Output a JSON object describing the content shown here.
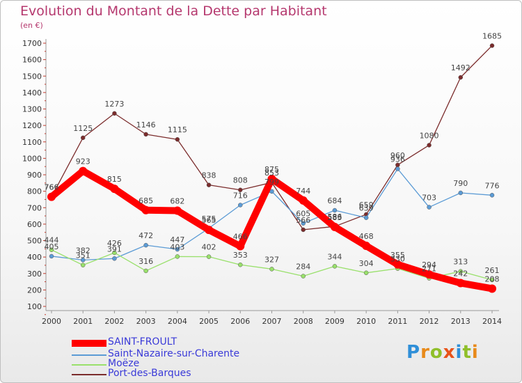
{
  "title": "Evolution du Montant de la Dette par Habitant",
  "unit": "(en €)",
  "logo": "Proxiti",
  "chart_data": {
    "type": "line",
    "x": [
      "2000",
      "2001",
      "2002",
      "2003",
      "2004",
      "2005",
      "2006",
      "2007",
      "2008",
      "2009",
      "2010",
      "2011",
      "2012",
      "2013",
      "2014"
    ],
    "ylim": [
      100,
      1700
    ],
    "yticks": [
      100,
      200,
      300,
      400,
      500,
      600,
      700,
      800,
      900,
      1000,
      1100,
      1200,
      1300,
      1400,
      1500,
      1600,
      1700
    ],
    "grid": false,
    "legend_position": "bottom-left",
    "series": [
      {
        "name": "SAINT-FROULT",
        "color": "#ff0000",
        "values": [
          766,
          923,
          815,
          685,
          682,
          565,
          466,
          875,
          744,
          583,
          468,
          355,
          294,
          242,
          208
        ]
      },
      {
        "name": "Saint-Nazaire-sur-Charente",
        "color": "#5b9bd5",
        "values": [
          405,
          382,
          391,
          472,
          447,
          575,
          716,
          799,
          605,
          684,
          639,
          936,
          703,
          790,
          776
        ]
      },
      {
        "name": "Moëze",
        "color": "#99e06b",
        "values": [
          444,
          351,
          426,
          316,
          403,
          402,
          353,
          327,
          284,
          344,
          304,
          330,
          271,
          313,
          261
        ]
      },
      {
        "name": "Port-des-Barques",
        "color": "#7b2c2c",
        "values": [
          766,
          1125,
          1273,
          1146,
          1115,
          838,
          808,
          853,
          566,
          586,
          659,
          960,
          1080,
          1492,
          1685
        ]
      }
    ]
  }
}
